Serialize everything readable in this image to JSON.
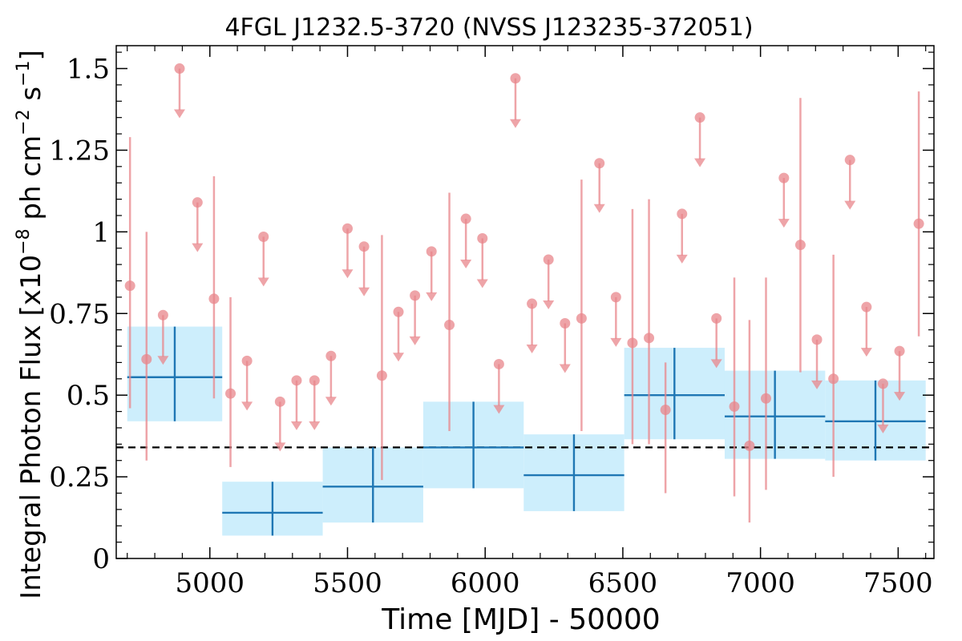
{
  "chart_data": {
    "type": "scatter",
    "title": "4FGL J1232.5-3720 (NVSS J123235-372051)",
    "xlabel": "Time [MJD] - 50000",
    "ylabel_main": "Integral Photon Flux [x10",
    "ylabel_exp1": "−8",
    "ylabel_mid": " ph cm",
    "ylabel_exp2": "−2",
    "ylabel_s": " s",
    "ylabel_exp3": "−1",
    "ylabel_end": "]",
    "xlim": [
      4660,
      7630
    ],
    "ylim": [
      0,
      1.57
    ],
    "xticks": [
      5000,
      5500,
      6000,
      6500,
      7000,
      7500
    ],
    "xtick_labels": [
      "5000",
      "5500",
      "6000",
      "6500",
      "7000",
      "7500"
    ],
    "yticks": [
      0,
      0.25,
      0.5,
      0.75,
      1,
      1.25,
      1.5
    ],
    "ytick_labels": [
      "0",
      "0.25",
      "0.5",
      "0.75",
      "1",
      "1.25",
      "1.5"
    ],
    "mean_flux": 0.34,
    "colors": {
      "monthly": "#e8868b",
      "yearly": "#1f77b4",
      "yearly_fill": "#cdeefc",
      "mean_line": "#000000"
    },
    "yearly_bins": [
      {
        "xmin": 4700,
        "xmax": 5045,
        "y": 0.555,
        "ylo": 0.42,
        "yhi": 0.71,
        "err_lo": 0.42,
        "err_hi": 0.71
      },
      {
        "xmin": 5045,
        "xmax": 5410,
        "y": 0.14,
        "ylo": 0.07,
        "yhi": 0.235,
        "err_lo": 0.07,
        "err_hi": 0.235
      },
      {
        "xmin": 5410,
        "xmax": 5775,
        "y": 0.22,
        "ylo": 0.11,
        "yhi": 0.34,
        "err_lo": 0.11,
        "err_hi": 0.34
      },
      {
        "xmin": 5775,
        "xmax": 6140,
        "y": 0.34,
        "ylo": 0.215,
        "yhi": 0.48,
        "err_lo": 0.215,
        "err_hi": 0.48
      },
      {
        "xmin": 6140,
        "xmax": 6505,
        "y": 0.255,
        "ylo": 0.145,
        "yhi": 0.38,
        "err_lo": 0.145,
        "err_hi": 0.38
      },
      {
        "xmin": 6505,
        "xmax": 6870,
        "y": 0.5,
        "ylo": 0.365,
        "yhi": 0.645,
        "err_lo": 0.365,
        "err_hi": 0.645
      },
      {
        "xmin": 6870,
        "xmax": 7235,
        "y": 0.435,
        "ylo": 0.305,
        "yhi": 0.575,
        "err_lo": 0.305,
        "err_hi": 0.575
      },
      {
        "xmin": 7235,
        "xmax": 7600,
        "y": 0.42,
        "ylo": 0.3,
        "yhi": 0.545,
        "err_lo": 0.3,
        "err_hi": 0.545
      }
    ],
    "monthly_detections": [
      {
        "x": 4710,
        "y": 0.835,
        "lo": 0.46,
        "hi": 1.29
      },
      {
        "x": 4770,
        "y": 0.61,
        "lo": 0.3,
        "hi": 1.0
      },
      {
        "x": 5015,
        "y": 0.795,
        "lo": 0.49,
        "hi": 1.17
      },
      {
        "x": 5075,
        "y": 0.505,
        "lo": 0.28,
        "hi": 0.8
      },
      {
        "x": 5625,
        "y": 0.56,
        "lo": 0.24,
        "hi": 0.99
      },
      {
        "x": 5870,
        "y": 0.715,
        "lo": 0.39,
        "hi": 1.12
      },
      {
        "x": 6350,
        "y": 0.735,
        "lo": 0.39,
        "hi": 1.16
      },
      {
        "x": 6535,
        "y": 0.66,
        "lo": 0.35,
        "hi": 1.07
      },
      {
        "x": 6595,
        "y": 0.675,
        "lo": 0.35,
        "hi": 1.1
      },
      {
        "x": 6655,
        "y": 0.455,
        "lo": 0.2,
        "hi": 0.6
      },
      {
        "x": 6905,
        "y": 0.465,
        "lo": 0.19,
        "hi": 0.86
      },
      {
        "x": 6960,
        "y": 0.345,
        "lo": 0.11,
        "hi": 0.73
      },
      {
        "x": 7020,
        "y": 0.49,
        "lo": 0.21,
        "hi": 0.86
      },
      {
        "x": 7145,
        "y": 0.96,
        "lo": 0.57,
        "hi": 1.41
      },
      {
        "x": 7265,
        "y": 0.55,
        "lo": 0.25,
        "hi": 0.93
      },
      {
        "x": 7575,
        "y": 1.025,
        "lo": 0.68,
        "hi": 1.43
      }
    ],
    "monthly_upper_limits": [
      {
        "x": 4830,
        "y": 0.745
      },
      {
        "x": 4890,
        "y": 1.5
      },
      {
        "x": 4955,
        "y": 1.09
      },
      {
        "x": 5135,
        "y": 0.605
      },
      {
        "x": 5195,
        "y": 0.985
      },
      {
        "x": 5255,
        "y": 0.48
      },
      {
        "x": 5315,
        "y": 0.545
      },
      {
        "x": 5380,
        "y": 0.545
      },
      {
        "x": 5440,
        "y": 0.62
      },
      {
        "x": 5500,
        "y": 1.01
      },
      {
        "x": 5560,
        "y": 0.955
      },
      {
        "x": 5685,
        "y": 0.755
      },
      {
        "x": 5745,
        "y": 0.805
      },
      {
        "x": 5805,
        "y": 0.94
      },
      {
        "x": 5930,
        "y": 1.04
      },
      {
        "x": 5990,
        "y": 0.98
      },
      {
        "x": 6050,
        "y": 0.595
      },
      {
        "x": 6110,
        "y": 1.47
      },
      {
        "x": 6170,
        "y": 0.78
      },
      {
        "x": 6230,
        "y": 0.915
      },
      {
        "x": 6290,
        "y": 0.72
      },
      {
        "x": 6415,
        "y": 1.21
      },
      {
        "x": 6475,
        "y": 0.8
      },
      {
        "x": 6715,
        "y": 1.055
      },
      {
        "x": 6780,
        "y": 1.35
      },
      {
        "x": 6840,
        "y": 0.735
      },
      {
        "x": 7085,
        "y": 1.165
      },
      {
        "x": 7205,
        "y": 0.67
      },
      {
        "x": 7325,
        "y": 1.22
      },
      {
        "x": 7385,
        "y": 0.77
      },
      {
        "x": 7445,
        "y": 0.535
      },
      {
        "x": 7505,
        "y": 0.635
      }
    ]
  }
}
